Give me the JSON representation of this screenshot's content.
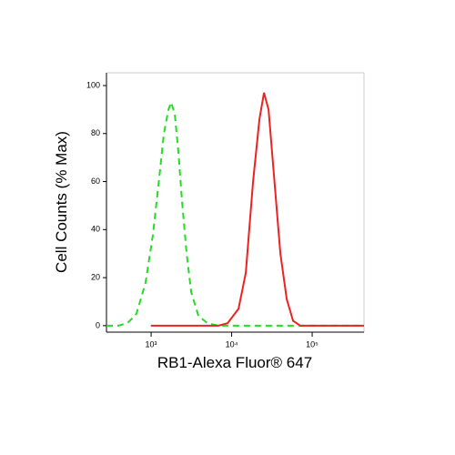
{
  "chart_data": {
    "type": "line",
    "xlabel": "RB1-Alexa Fluor® 647",
    "ylabel": "Cell Counts (% Max)",
    "xscale": "log",
    "xlim": [
      279,
      440000
    ],
    "ylim": [
      -2.7,
      105.3
    ],
    "xticks": [
      {
        "value": 1000,
        "label": "10³"
      },
      {
        "value": 10000,
        "label": "10⁴"
      },
      {
        "value": 100000,
        "label": "10⁵"
      }
    ],
    "yticks": [
      0,
      20,
      40,
      60,
      80,
      100
    ],
    "series": [
      {
        "color": "#22dd22",
        "dash": true,
        "x": [
          279,
          392,
          508,
          659,
          855,
          1054,
          1265,
          1439,
          1640,
          1775,
          1967,
          2183,
          2421,
          2758,
          3141,
          3870,
          5020,
          6850,
          71300,
          440000
        ],
        "values": [
          0,
          0,
          1,
          5,
          18,
          38,
          62,
          80,
          90,
          93,
          88,
          72,
          52,
          30,
          14,
          4,
          1,
          0,
          0,
          0
        ]
      },
      {
        "color": "#ee2222",
        "dash": false,
        "x": [
          990,
          6850,
          8890,
          12160,
          14970,
          18450,
          22130,
          25200,
          28710,
          32690,
          40230,
          48310,
          57940,
          71300,
          440000
        ],
        "values": [
          0,
          0,
          1,
          7,
          22,
          60,
          86,
          97,
          90,
          67,
          30,
          11,
          2,
          0,
          0
        ]
      }
    ]
  }
}
